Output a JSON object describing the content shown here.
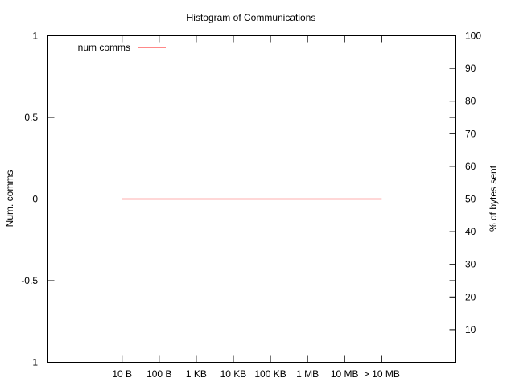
{
  "chart_data": {
    "type": "line",
    "title": "Histogram of Communications",
    "xlabel": "",
    "ylabel": "Num. comms",
    "y2label": "% of bytes sent",
    "categories": [
      "10 B",
      "100 B",
      "1 KB",
      "10 KB",
      "100 KB",
      "1 MB",
      "10 MB",
      "> 10 MB"
    ],
    "series": [
      {
        "name": "num comms",
        "axis": "left",
        "color": "#ff6060",
        "values": [
          0,
          0,
          0,
          0,
          0,
          0,
          0,
          0
        ]
      }
    ],
    "ylim": [
      -1,
      1
    ],
    "yticks": [
      -1,
      -0.5,
      0,
      0.5,
      1
    ],
    "y2lim": [
      0,
      100
    ],
    "y2ticks": [
      10,
      20,
      30,
      40,
      50,
      60,
      70,
      80,
      90,
      100
    ],
    "legend_position": "top-left",
    "grid": false
  }
}
